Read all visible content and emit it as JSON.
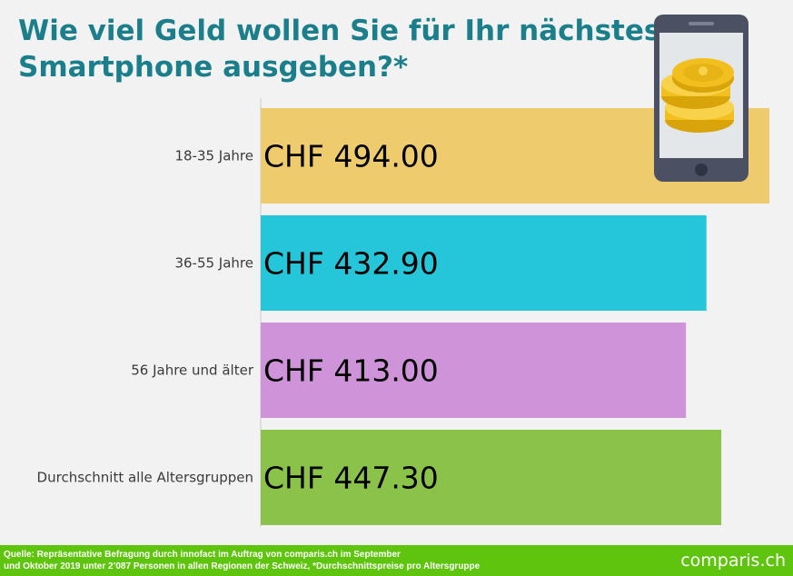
{
  "title": {
    "line1": "Wie viel Geld wollen Sie für Ihr nächstes",
    "line2": "Smartphone ausgeben?*"
  },
  "chart_data": {
    "type": "bar",
    "orientation": "horizontal",
    "categories": [
      "18-35 Jahre",
      "36-55 Jahre",
      "56 Jahre und älter",
      "Durchschnitt alle Altersgruppen"
    ],
    "values": [
      494.0,
      432.9,
      413.0,
      447.3
    ],
    "value_labels": [
      "CHF 494.00",
      "CHF 432.90",
      "CHF 413.00",
      "CHF 447.30"
    ],
    "colors": [
      "#eecb6d",
      "#26c6da",
      "#ce93d8",
      "#8bc34a"
    ],
    "xlim": [
      0,
      494
    ],
    "grid": false
  },
  "illustration": {
    "icon": "smartphone-with-coins-icon",
    "colors": {
      "phone_frame": "#4b5163",
      "screen": "#e3e7ea",
      "coin": "#f2c01e",
      "coin_shade": "#d9a30a"
    }
  },
  "footer": {
    "source_line1": "Quelle: Repräsentative Befragung durch innofact im Auftrag von comparis.ch im September",
    "source_line2": "und Oktober 2019 unter 2’087 Personen in allen Regionen der Schweiz, *Durchschnittspreise pro Altersgruppe",
    "brand": "comparis.ch",
    "color": "#5ec40d"
  }
}
